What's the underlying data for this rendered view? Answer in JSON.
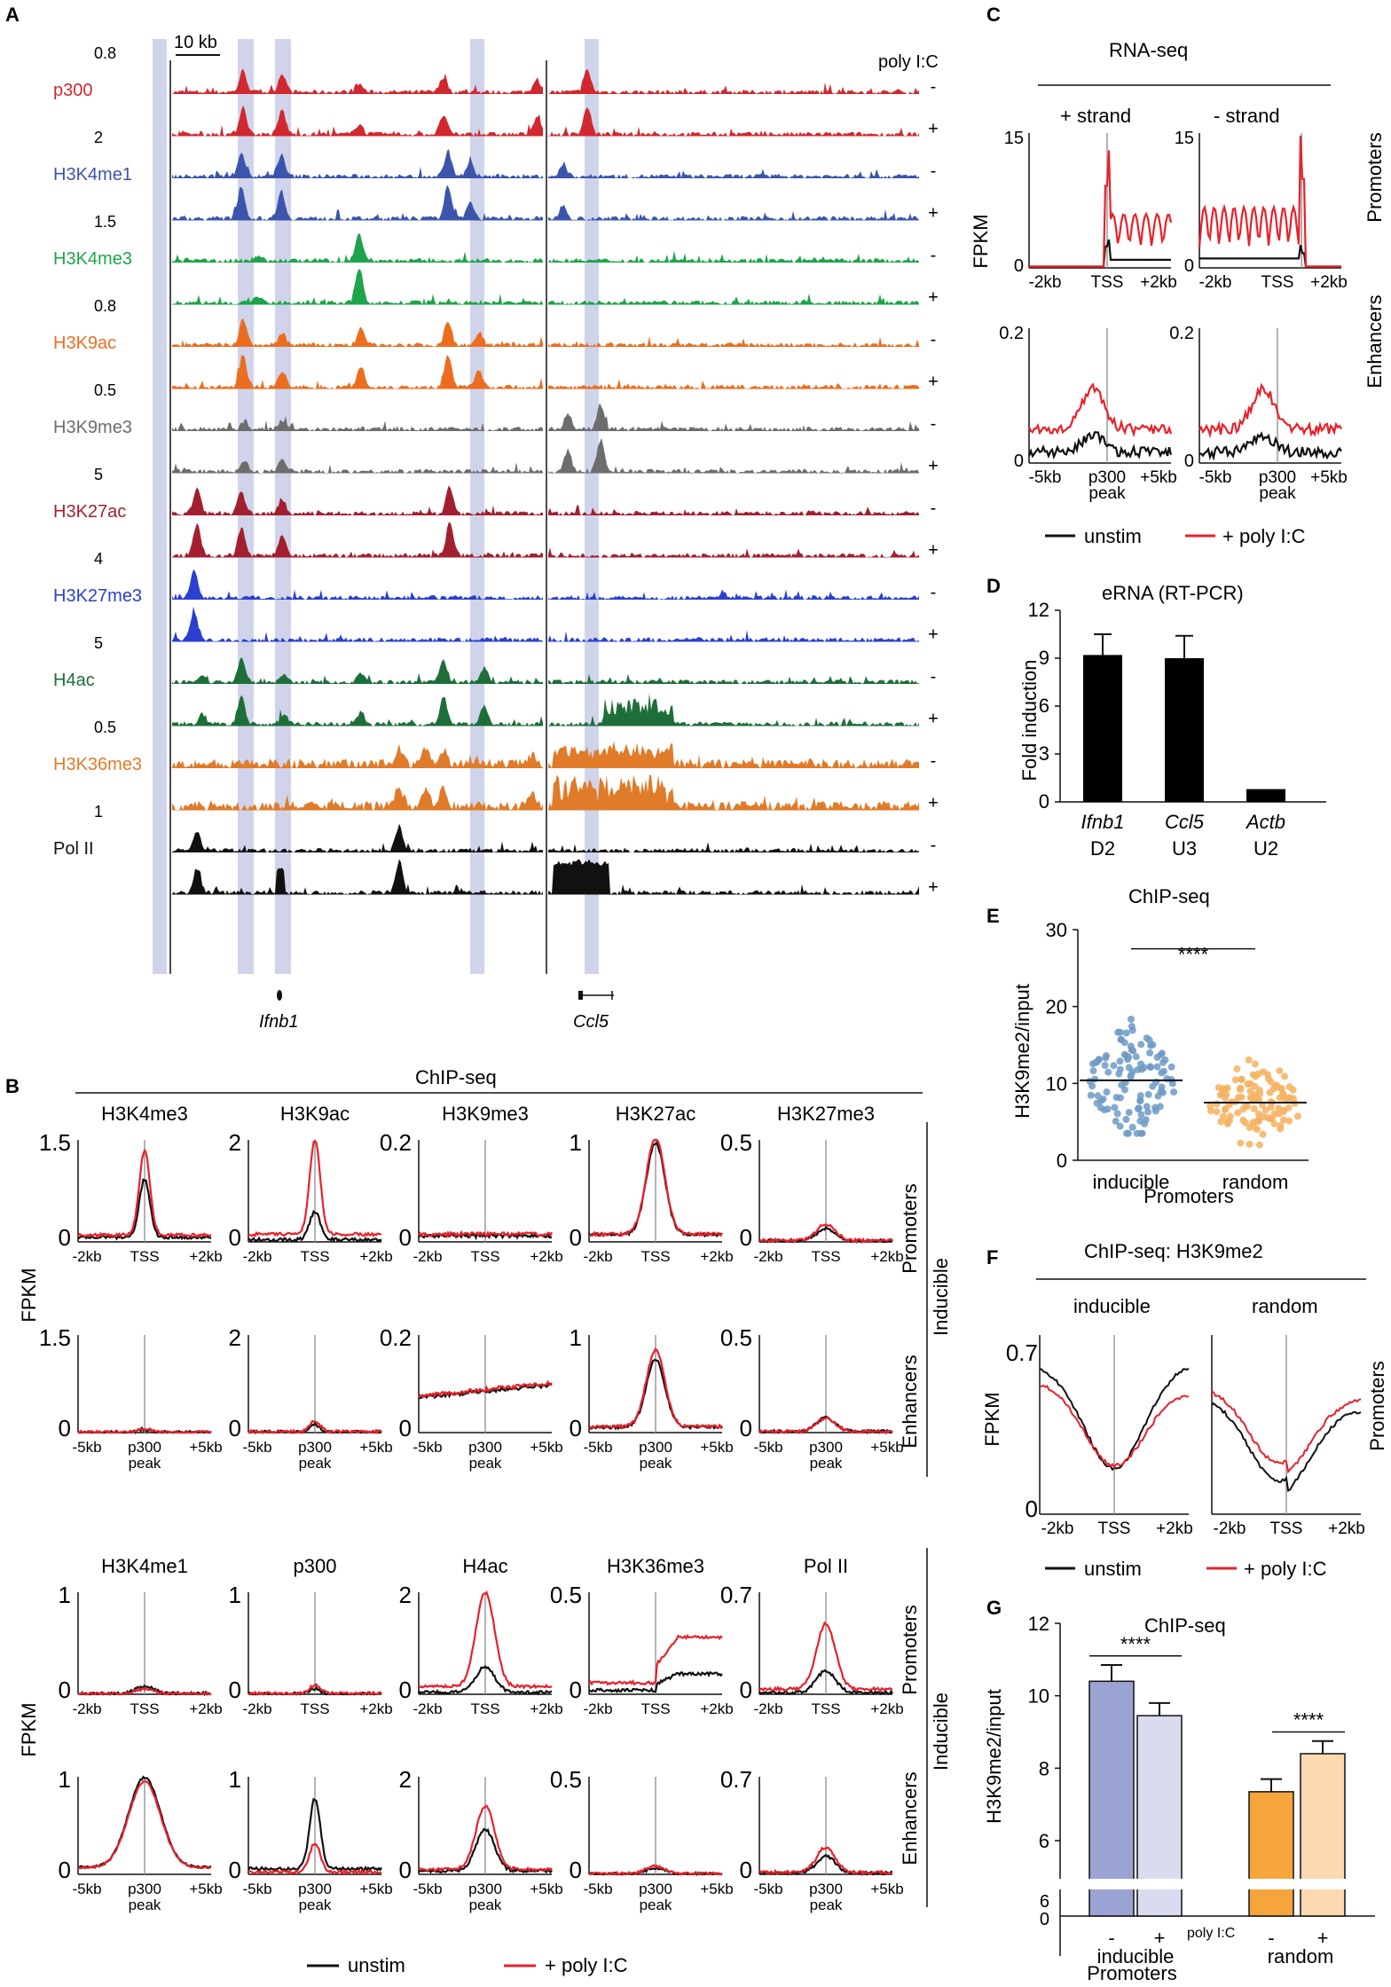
{
  "panel_letters": {
    "a": "A",
    "b": "B",
    "c": "C",
    "d": "D",
    "e": "E",
    "f": "F",
    "g": "G"
  },
  "colors": {
    "unstim": "#111111",
    "stim": "#e8212a",
    "highlight": "#c7cde6"
  },
  "chart_data": [
    {
      "panel": "A",
      "type": "genome-browser",
      "scale_bar": "10 kb",
      "header": "poly I:C",
      "genes": [
        "Ifnb1",
        "Ccl5"
      ],
      "tracks": [
        {
          "mark": "p300",
          "scale": "0.8",
          "color": "#d1282f",
          "conditions": [
            "-",
            "+"
          ]
        },
        {
          "mark": "H3K4me1",
          "scale": "2",
          "color": "#3b55ad",
          "conditions": [
            "-",
            "+"
          ]
        },
        {
          "mark": "H3K4me3",
          "scale": "1.5",
          "color": "#1ea44a",
          "conditions": [
            "-",
            "+"
          ]
        },
        {
          "mark": "H3K9ac",
          "scale": "0.8",
          "color": "#ec6d1f",
          "conditions": [
            "-",
            "+"
          ]
        },
        {
          "mark": "H3K9me3",
          "scale": "0.5",
          "color": "#6d6d6d",
          "conditions": [
            "-",
            "+"
          ]
        },
        {
          "mark": "H3K27ac",
          "scale": "5",
          "color": "#a21f2f",
          "conditions": [
            "-",
            "+"
          ]
        },
        {
          "mark": "H3K27me3",
          "scale": "4",
          "color": "#2b3fd0",
          "conditions": [
            "-",
            "+"
          ]
        },
        {
          "mark": "H4ac",
          "scale": "5",
          "color": "#1e6e3a",
          "conditions": [
            "-",
            "+"
          ]
        },
        {
          "mark": "H3K36me3",
          "scale": "0.5",
          "color": "#e07b29",
          "conditions": [
            "-",
            "+"
          ]
        },
        {
          "mark": "Pol II",
          "scale": "1",
          "color": "#111111",
          "conditions": [
            "-",
            "+"
          ]
        }
      ]
    },
    {
      "panel": "B",
      "type": "line",
      "title": "ChIP-seq",
      "ylabel": "FPKM",
      "row_labels": [
        "Promoters",
        "Enhancers"
      ],
      "group_label": "Inducible",
      "promoter_ticks": [
        "-2kb",
        "TSS",
        "+2kb"
      ],
      "enhancer_ticks": [
        "-5kb",
        "p300\npeak",
        "+5kb"
      ],
      "legend": [
        "unstim",
        "+ poly I:C"
      ],
      "marks": [
        {
          "name": "H3K4me3",
          "ymax": "1.5",
          "promoter": {
            "unstim": 0.85,
            "stim": 1.25
          },
          "enhancer": {
            "unstim": 0.05,
            "stim": 0.06
          }
        },
        {
          "name": "H3K9ac",
          "ymax": "2",
          "promoter": {
            "unstim": 0.55,
            "stim": 1.85
          },
          "enhancer": {
            "unstim": 0.15,
            "stim": 0.22
          }
        },
        {
          "name": "H3K9me3",
          "ymax": "0.2",
          "promoter": {
            "unstim": 0.012,
            "stim": 0.015
          },
          "enhancer": {
            "unstim": 0.085,
            "stim": 0.088
          }
        },
        {
          "name": "H3K27ac",
          "ymax": "1",
          "promoter": {
            "unstim": 0.9,
            "stim": 0.95
          },
          "enhancer": {
            "unstim": 0.7,
            "stim": 0.78
          }
        },
        {
          "name": "H3K27me3",
          "ymax": "0.5",
          "promoter": {
            "unstim": 0.06,
            "stim": 0.08
          },
          "enhancer": {
            "unstim": 0.07,
            "stim": 0.07
          }
        },
        {
          "name": "H3K4me1",
          "ymax": "1",
          "promoter": {
            "unstim": 0.07,
            "stim": 0.05
          },
          "enhancer": {
            "unstim": 0.92,
            "stim": 0.88
          }
        },
        {
          "name": "p300",
          "ymax": "1",
          "promoter": {
            "unstim": 0.05,
            "stim": 0.08
          },
          "enhancer": {
            "unstim": 0.72,
            "stim": 0.3
          }
        },
        {
          "name": "H4ac",
          "ymax": "2",
          "promoter": {
            "unstim": 0.5,
            "stim": 1.85
          },
          "enhancer": {
            "unstim": 0.85,
            "stim": 1.3
          }
        },
        {
          "name": "H3K36me3",
          "ymax": "0.5",
          "promoter": {
            "unstim": 0.1,
            "stim": 0.28
          },
          "enhancer": {
            "unstim": 0.03,
            "stim": 0.04
          }
        },
        {
          "name": "Pol II",
          "ymax": "0.7",
          "promoter": {
            "unstim": 0.15,
            "stim": 0.45
          },
          "enhancer": {
            "unstim": 0.12,
            "stim": 0.18
          }
        }
      ]
    },
    {
      "panel": "C",
      "type": "line",
      "title": "RNA-seq",
      "ylabel": "FPKM",
      "columns": [
        "+ strand",
        "- strand"
      ],
      "row_labels": [
        "Promoters",
        "Enhancers"
      ],
      "promoter_ymax": "15",
      "enhancer_ymax": "0.2",
      "promoter_ticks": [
        "-2kb",
        "TSS",
        "+2kb"
      ],
      "enhancer_ticks": [
        "-5kb",
        "p300\npeak",
        "+5kb"
      ],
      "legend": [
        "unstim",
        "+ poly I:C"
      ]
    },
    {
      "panel": "D",
      "type": "bar",
      "title": "eRNA (RT-PCR)",
      "ylabel": "Fold induction",
      "categories": [
        "Ifnb1",
        "Ccl5",
        "Actb"
      ],
      "sublabels": [
        "D2",
        "U3",
        "U2"
      ],
      "values": [
        9.2,
        9.0,
        0.8
      ],
      "errors": [
        1.3,
        1.4,
        0
      ],
      "yticks": [
        "0",
        "3",
        "6",
        "9",
        "12"
      ],
      "ylim": [
        0,
        12
      ]
    },
    {
      "panel": "E",
      "type": "scatter",
      "title": "ChIP-seq",
      "ylabel": "H3K9me2/input",
      "xlabel": "Promoters",
      "categories": [
        "inducible",
        "random"
      ],
      "means": [
        10.4,
        7.5
      ],
      "ranges": [
        [
          3.5,
          26.5
        ],
        [
          2.0,
          18.5
        ]
      ],
      "colors": [
        "#6d9ac4",
        "#f4b15f"
      ],
      "significance": "****",
      "yticks": [
        "0",
        "10",
        "20",
        "30"
      ],
      "ylim": [
        0,
        30
      ]
    },
    {
      "panel": "F",
      "type": "line",
      "title": "ChIP-seq: H3K9me2",
      "ylabel": "FPKM",
      "columns": [
        "inducible",
        "random"
      ],
      "row_label": "Promoters",
      "ymax": "0.7",
      "ticks": [
        "-2kb",
        "TSS",
        "+2kb"
      ],
      "legend": [
        "unstim",
        "+ poly I:C"
      ]
    },
    {
      "panel": "G",
      "type": "bar",
      "title": "ChIP-seq",
      "ylabel": "H3K9me2/input",
      "xlabel": "Promoters",
      "groups": [
        "inducible",
        "random"
      ],
      "condition_label": "poly I:C",
      "conditions": [
        "-",
        "+"
      ],
      "values": [
        10.4,
        9.45,
        7.35,
        8.4
      ],
      "errors": [
        0.45,
        0.35,
        0.35,
        0.35
      ],
      "bar_colors": [
        "#9ba3d3",
        "#d8dcee",
        "#f5a53c",
        "#fcd9b0"
      ],
      "significance": [
        "****",
        "****"
      ],
      "yticks": [
        "6",
        "8",
        "10",
        "12"
      ],
      "ylim": [
        6,
        12
      ],
      "break_ticks": [
        "6",
        "0"
      ]
    }
  ]
}
